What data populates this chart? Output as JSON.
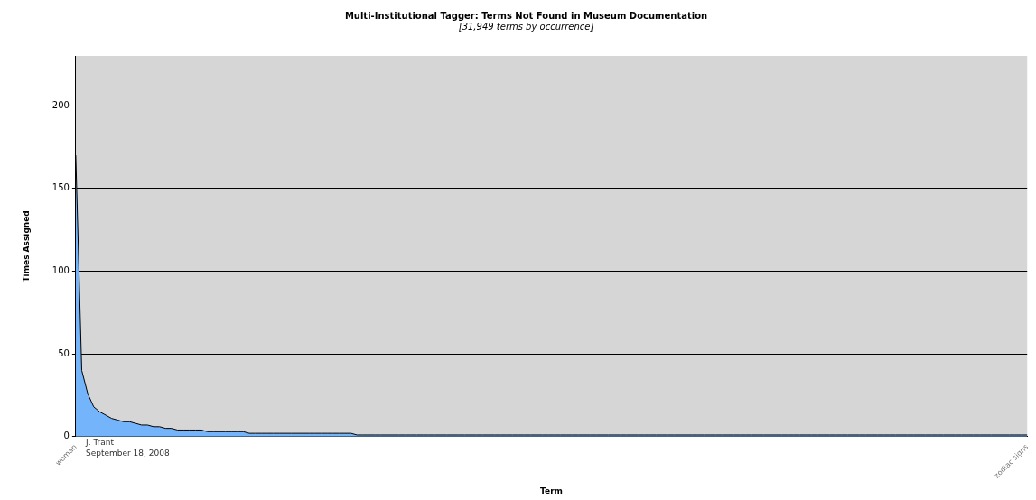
{
  "chart_data": {
    "type": "area",
    "title": "Multi-Institutional Tagger: Terms Not Found in Museum Documentation",
    "subtitle": "[31,949 terms by occurrence]",
    "xlabel": "Term",
    "ylabel": "Times Assigned",
    "categories": [
      "woman",
      null,
      null,
      null,
      null,
      null,
      null,
      null,
      null,
      null,
      null,
      null,
      null,
      null,
      null,
      null,
      null,
      null,
      null,
      null,
      null,
      null,
      null,
      null,
      null,
      null,
      null,
      null,
      null,
      null,
      null,
      null,
      null,
      null,
      null,
      null,
      null,
      null,
      null,
      null,
      null,
      null,
      null,
      null,
      null,
      null,
      null,
      null,
      null,
      null,
      null,
      null,
      null,
      null,
      null,
      null,
      null,
      null,
      null,
      null,
      null,
      null,
      null,
      null,
      null,
      null,
      null,
      null,
      null,
      null,
      null,
      null,
      null,
      null,
      null,
      null,
      null,
      null,
      null,
      null,
      null,
      null,
      null,
      null,
      null,
      null,
      null,
      null,
      null,
      null,
      null,
      null,
      null,
      null,
      null,
      null,
      null,
      null,
      null,
      null,
      null,
      null,
      null,
      null,
      null,
      null,
      null,
      null,
      null,
      null,
      null,
      null,
      null,
      null,
      null,
      null,
      null,
      null,
      null,
      null,
      null,
      null,
      null,
      null,
      null,
      null,
      null,
      null,
      null,
      null,
      null,
      null,
      null,
      null,
      null,
      null,
      null,
      null,
      null,
      null,
      null,
      null,
      null,
      null,
      null,
      null,
      null,
      null,
      null,
      null,
      null,
      null,
      null,
      null,
      null,
      null,
      null,
      null,
      null,
      "zodiac signs"
    ],
    "series": [
      {
        "color": "#74b4fa",
        "values": [
          170,
          40,
          26,
          18,
          15,
          13,
          11,
          10,
          9,
          9,
          8,
          7,
          7,
          6,
          6,
          5,
          5,
          4,
          4,
          4,
          4,
          4,
          3,
          3,
          3,
          3,
          3,
          3,
          3,
          2,
          2,
          2,
          2,
          2,
          2,
          2,
          2,
          2,
          2,
          2,
          2,
          2,
          2,
          2,
          2,
          2,
          2,
          1,
          1,
          1,
          1,
          1,
          1,
          1,
          1,
          1,
          1,
          1,
          1,
          1,
          1,
          1,
          1,
          1,
          1,
          1,
          1,
          1,
          1,
          1,
          1,
          1,
          1,
          1,
          1,
          1,
          1,
          1,
          1,
          1,
          1,
          1,
          1,
          1,
          1,
          1,
          1,
          1,
          1,
          1,
          1,
          1,
          1,
          1,
          1,
          1,
          1,
          1,
          1,
          1,
          1,
          1,
          1,
          1,
          1,
          1,
          1,
          1,
          1,
          1,
          1,
          1,
          1,
          1,
          1,
          1,
          1,
          1,
          1,
          1,
          1,
          1,
          1,
          1,
          1,
          1,
          1,
          1,
          1,
          1,
          1,
          1,
          1,
          1,
          1,
          1,
          1,
          1,
          1,
          1,
          1,
          1,
          1,
          1,
          1,
          1,
          1,
          1,
          1,
          1,
          1,
          1,
          1,
          1,
          1,
          1,
          1,
          1,
          1,
          1
        ]
      }
    ],
    "ylim": [
      0,
      230
    ],
    "yticks": [
      0,
      50,
      100,
      150,
      200
    ],
    "grid": "y",
    "legend": false,
    "annotations": [
      "J. Trant\nSeptember 18, 2008"
    ]
  }
}
